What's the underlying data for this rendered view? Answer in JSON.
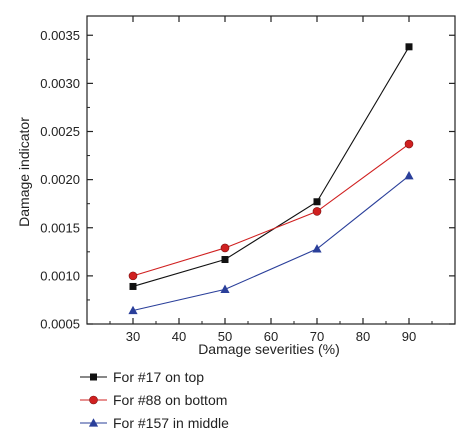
{
  "chart_data": {
    "type": "line",
    "xlabel": "Damage severities (%)",
    "ylabel": "Damage indicator",
    "xlim": [
      20,
      100
    ],
    "ylim": [
      0.0005,
      0.0037
    ],
    "x_ticks": [
      "30",
      "40",
      "50",
      "60",
      "70",
      "80",
      "90"
    ],
    "y_ticks": [
      "0.0005",
      "0.0010",
      "0.0015",
      "0.0020",
      "0.0025",
      "0.0030",
      "0.0035"
    ],
    "grid": false,
    "legend_position": "bottom-left",
    "x": [
      30,
      50,
      70,
      90
    ],
    "series": [
      {
        "name": "For #17 on top",
        "values": [
          0.00089,
          0.00117,
          0.00177,
          0.00338
        ],
        "color": "#111111",
        "marker": "square"
      },
      {
        "name": "For #88 on bottom",
        "values": [
          0.001,
          0.00129,
          0.00167,
          0.00237
        ],
        "color": "#d02020",
        "marker": "circle"
      },
      {
        "name": "For #157 in middle",
        "values": [
          0.00064,
          0.00086,
          0.00128,
          0.00204
        ],
        "color": "#2a3f9a",
        "marker": "triangle"
      }
    ]
  }
}
